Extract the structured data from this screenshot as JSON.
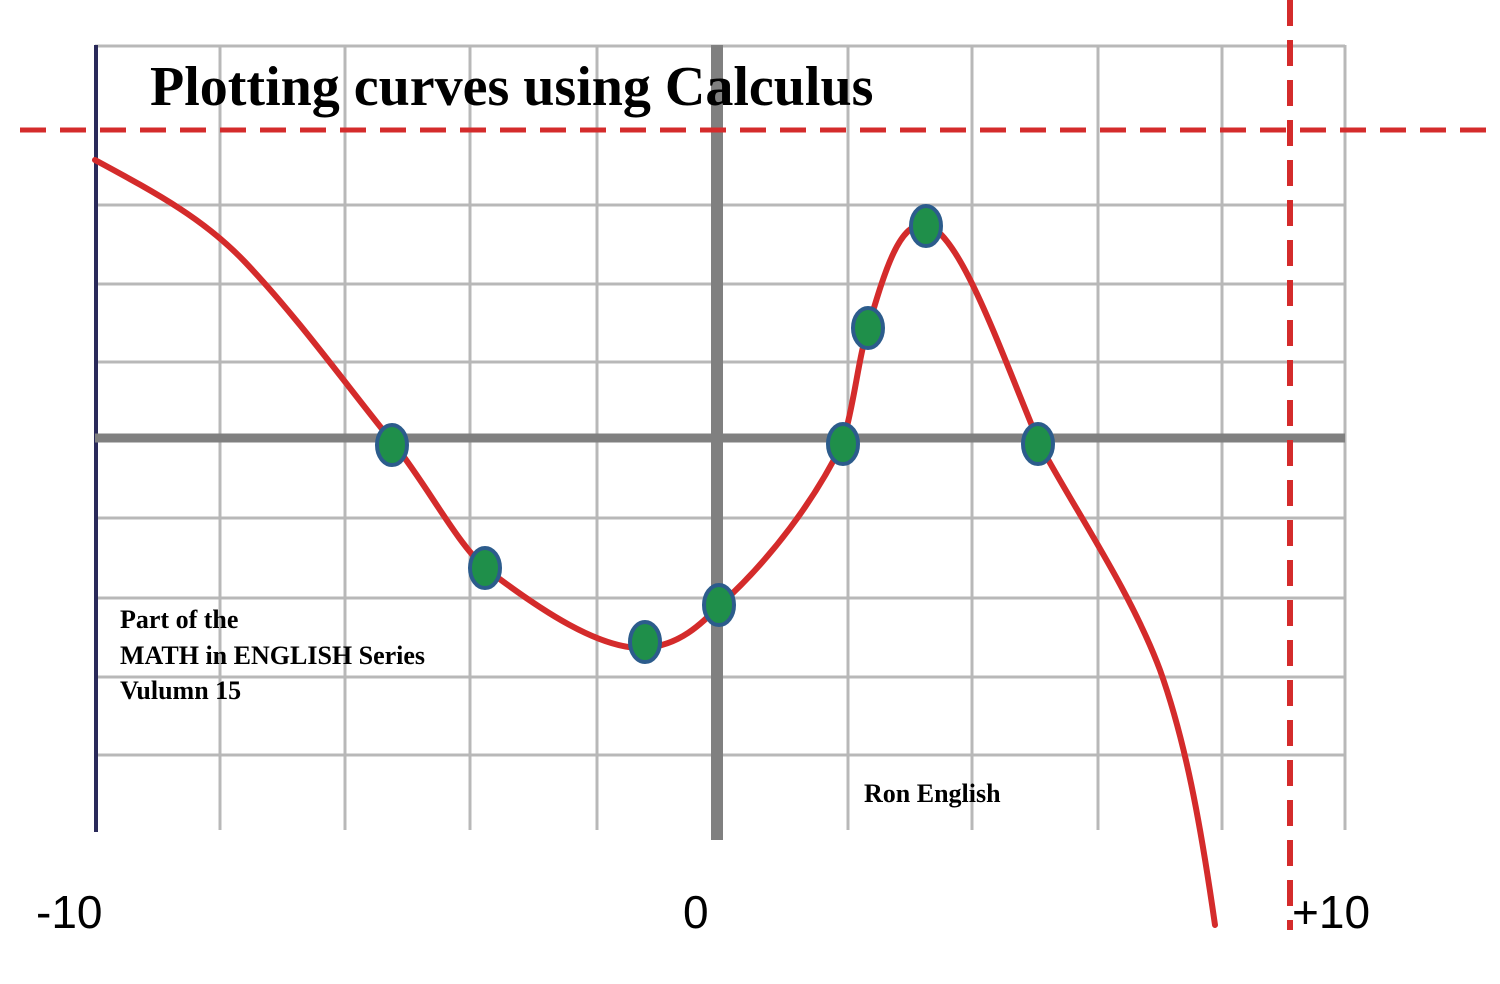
{
  "title": "Plotting curves using Calculus",
  "series_note": {
    "line1": "Part of the",
    "line2": "MATH in ENGLISH Series",
    "line3": "Vulumn 15"
  },
  "author": "Ron English",
  "axis_labels": {
    "left": "-10",
    "middle": "0",
    "right": "+10"
  }
}
